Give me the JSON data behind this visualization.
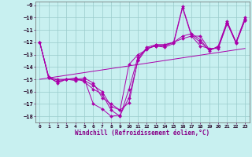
{
  "xlabel": "Windchill (Refroidissement éolien,°C)",
  "background_color": "#c8f0f0",
  "grid_color": "#99cccc",
  "line_color": "#aa00aa",
  "xlim": [
    -0.5,
    23.5
  ],
  "ylim": [
    -18.5,
    -8.7
  ],
  "yticks": [
    -9,
    -10,
    -11,
    -12,
    -13,
    -14,
    -15,
    -16,
    -17,
    -18
  ],
  "xticks": [
    0,
    1,
    2,
    3,
    4,
    5,
    6,
    7,
    8,
    9,
    10,
    11,
    12,
    13,
    14,
    15,
    16,
    17,
    18,
    19,
    20,
    21,
    22,
    23
  ],
  "line1_x": [
    0,
    1,
    2,
    3,
    4,
    5,
    6,
    7,
    8,
    9,
    10,
    11,
    12,
    13,
    14,
    15,
    16,
    17,
    18,
    19,
    20,
    21,
    22,
    23
  ],
  "line1_y": [
    -12,
    -14.8,
    -15.3,
    -15.0,
    -15.1,
    -15.0,
    -17.0,
    -17.4,
    -18.0,
    -17.9,
    -16.5,
    -13.5,
    -12.5,
    -12.3,
    -12.4,
    -12.1,
    -9.2,
    -11.5,
    -12.3,
    -12.5,
    -12.5,
    -10.5,
    -12.0,
    -10.2
  ],
  "line2_x": [
    0,
    1,
    2,
    3,
    4,
    5,
    6,
    7,
    8,
    9,
    10,
    11,
    12,
    13,
    14,
    15,
    16,
    17,
    18,
    19,
    20,
    21,
    22,
    23
  ],
  "line2_y": [
    -12,
    -14.9,
    -15.2,
    -15.0,
    -14.9,
    -15.2,
    -15.8,
    -16.2,
    -17.5,
    -18.0,
    -15.8,
    -13.2,
    -12.5,
    -12.3,
    -12.3,
    -12.0,
    -11.7,
    -11.5,
    -11.5,
    -12.6,
    -12.4,
    -10.4,
    -12.0,
    -10.1
  ],
  "line3_x": [
    0,
    1,
    2,
    3,
    4,
    5,
    6,
    7,
    8,
    9,
    10,
    11,
    12,
    13,
    14,
    15,
    16,
    17,
    18,
    19,
    20,
    21,
    22,
    23
  ],
  "line3_y": [
    -12,
    -14.9,
    -15.0,
    -15.0,
    -15.0,
    -15.1,
    -15.5,
    -16.0,
    -17.2,
    -17.5,
    -13.8,
    -13.0,
    -12.6,
    -12.2,
    -12.2,
    -12.0,
    -11.5,
    -11.3,
    -11.8,
    -12.7,
    -12.3,
    -10.3,
    -12.0,
    -10.0
  ],
  "line4_x": [
    0,
    1,
    2,
    3,
    4,
    5,
    6,
    7,
    8,
    9,
    10,
    11,
    12,
    13,
    14,
    15,
    16,
    17,
    18,
    19,
    20,
    21,
    22,
    23
  ],
  "line4_y": [
    -12,
    -14.8,
    -15.1,
    -15.0,
    -15.0,
    -14.9,
    -15.3,
    -16.5,
    -17.0,
    -17.5,
    -16.9,
    -13.4,
    -12.4,
    -12.2,
    -12.2,
    -12.0,
    -9.1,
    -11.4,
    -12.0,
    -12.6,
    -12.4,
    -10.4,
    -12.1,
    -10.2
  ],
  "ref_line_x": [
    0,
    23
  ],
  "ref_line_y": [
    -15.0,
    -12.5
  ]
}
